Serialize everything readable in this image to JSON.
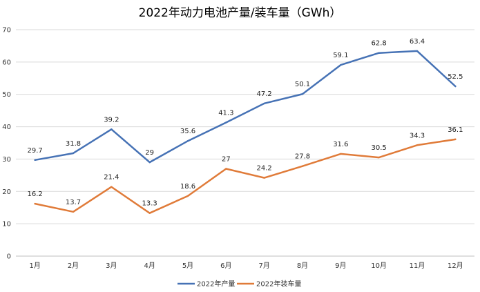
{
  "chart_data": {
    "type": "line",
    "title": "2022年动力电池产量/装车量（GWh）",
    "xlabel": "",
    "ylabel": "",
    "categories": [
      "1月",
      "2月",
      "3月",
      "4月",
      "5月",
      "6月",
      "7月",
      "8月",
      "9月",
      "10月",
      "11月",
      "12月"
    ],
    "ylim": [
      0,
      70
    ],
    "yticks": [
      "0",
      "10",
      "20",
      "30",
      "40",
      "50",
      "60",
      "70"
    ],
    "grid": true,
    "legend_position": "bottom",
    "series": [
      {
        "name": "2022年产量",
        "color": "#4672B5",
        "values": [
          29.7,
          31.8,
          39.2,
          29,
          35.6,
          41.3,
          47.2,
          50.1,
          59.1,
          62.8,
          63.4,
          52.5
        ],
        "labels": [
          "29.7",
          "31.8",
          "39.2",
          "29",
          "35.6",
          "41.3",
          "47.2",
          "50.1",
          "59.1",
          "62.8",
          "63.4",
          "52.5"
        ]
      },
      {
        "name": "2022年装车量",
        "color": "#E07B39",
        "values": [
          16.2,
          13.7,
          21.4,
          13.3,
          18.6,
          27,
          24.2,
          27.8,
          31.6,
          30.5,
          34.3,
          36.1
        ],
        "labels": [
          "16.2",
          "13.7",
          "21.4",
          "13.3",
          "18.6",
          "27",
          "24.2",
          "27.8",
          "31.6",
          "30.5",
          "34.3",
          "36.1"
        ]
      }
    ]
  }
}
